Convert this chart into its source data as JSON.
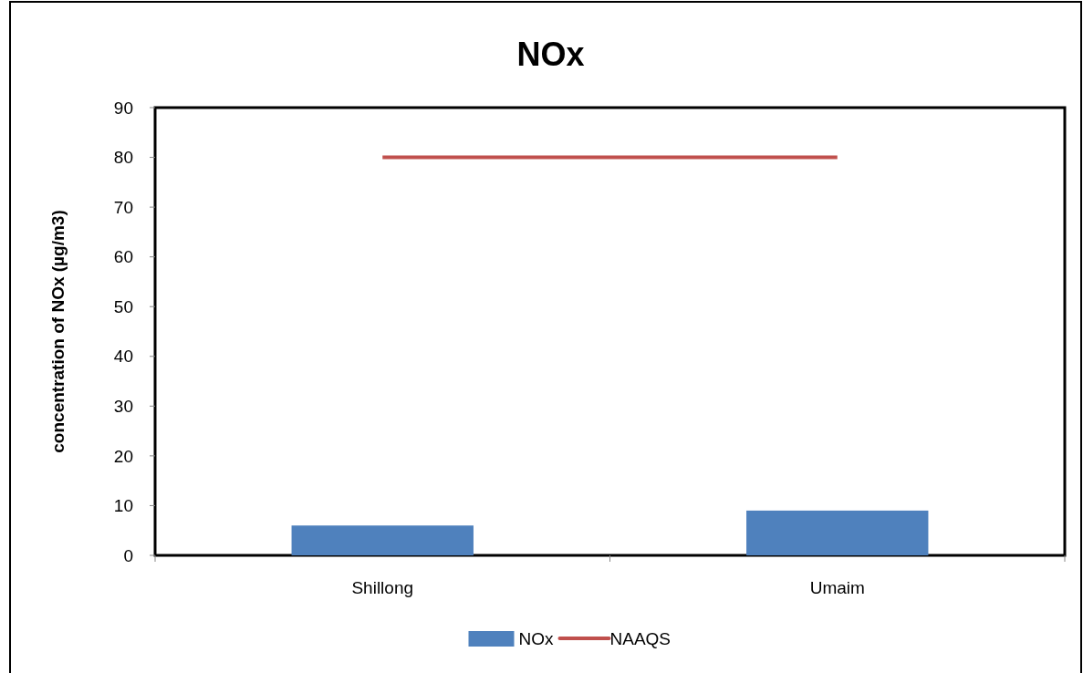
{
  "chart_data": {
    "type": "bar",
    "title": "NOx",
    "ylabel": "concentration of NOx (µg/m3)",
    "categories": [
      "Shillong",
      "Umaim"
    ],
    "series": [
      {
        "name": "NOx",
        "color": "#4f81bd",
        "values": [
          6,
          9
        ]
      },
      {
        "name": "NAAQS",
        "type": "line",
        "color": "#c0504d",
        "values": [
          80,
          80
        ]
      }
    ],
    "ylim": [
      0,
      90
    ],
    "yticks": [
      0,
      10,
      20,
      30,
      40,
      50,
      60,
      70,
      80,
      90
    ],
    "grid": false,
    "legend": "bottom",
    "marker": "none"
  }
}
